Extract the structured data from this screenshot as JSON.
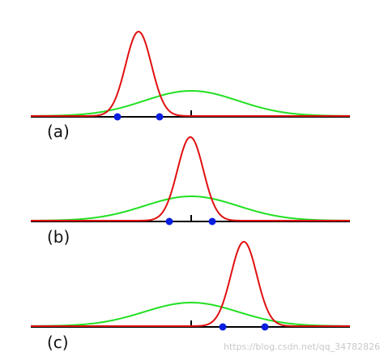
{
  "panels": [
    {
      "label": "(a)"
    },
    {
      "label": "(b)"
    },
    {
      "label": "(c)"
    }
  ],
  "watermark": "https://blog.csdn.net/qq_34782826"
}
